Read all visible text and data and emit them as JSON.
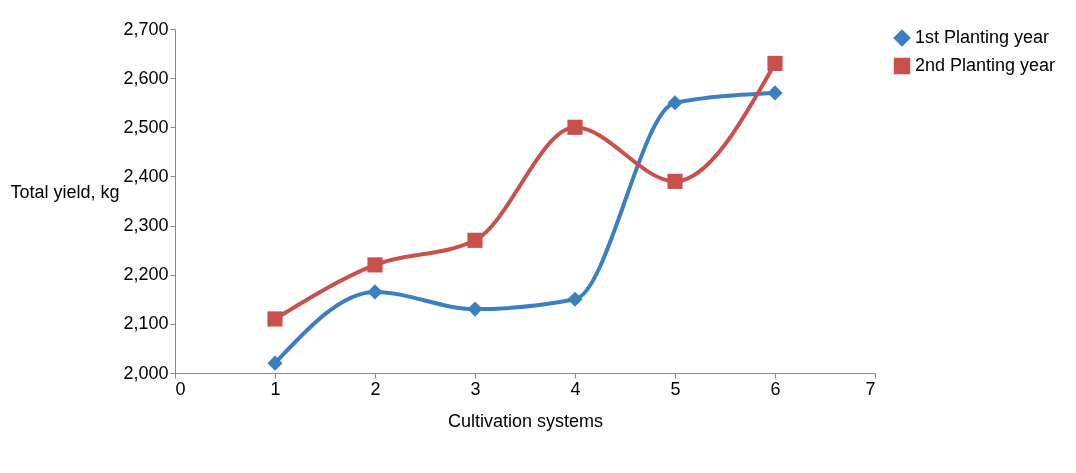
{
  "chart_data": {
    "type": "line",
    "xlabel": "Cultivation systems",
    "ylabel": "Total yield, kg",
    "x": [
      1,
      2,
      3,
      4,
      5,
      6
    ],
    "series": [
      {
        "name": "1st Planting year",
        "color": "#3c7fc1",
        "marker": "diamond",
        "values": [
          2020,
          2165,
          2130,
          2150,
          2550,
          2570
        ]
      },
      {
        "name": "2nd Planting year",
        "color": "#c9504b",
        "marker": "square",
        "values": [
          2110,
          2220,
          2270,
          2500,
          2390,
          2630
        ]
      }
    ],
    "xlim": [
      0,
      7
    ],
    "xticks": [
      0,
      1,
      2,
      3,
      4,
      5,
      6,
      7
    ],
    "ylim": [
      2000,
      2700
    ],
    "yticks": [
      {
        "value": 2000,
        "label": "2,000"
      },
      {
        "value": 2100,
        "label": "2,100"
      },
      {
        "value": 2200,
        "label": "2,200"
      },
      {
        "value": 2300,
        "label": "2,300"
      },
      {
        "value": 2400,
        "label": "2,400"
      },
      {
        "value": 2500,
        "label": "2,500"
      },
      {
        "value": 2600,
        "label": "2,600"
      },
      {
        "value": 2700,
        "label": "2,700"
      }
    ],
    "grid": false,
    "legend": "top right",
    "line_style": "solid"
  }
}
